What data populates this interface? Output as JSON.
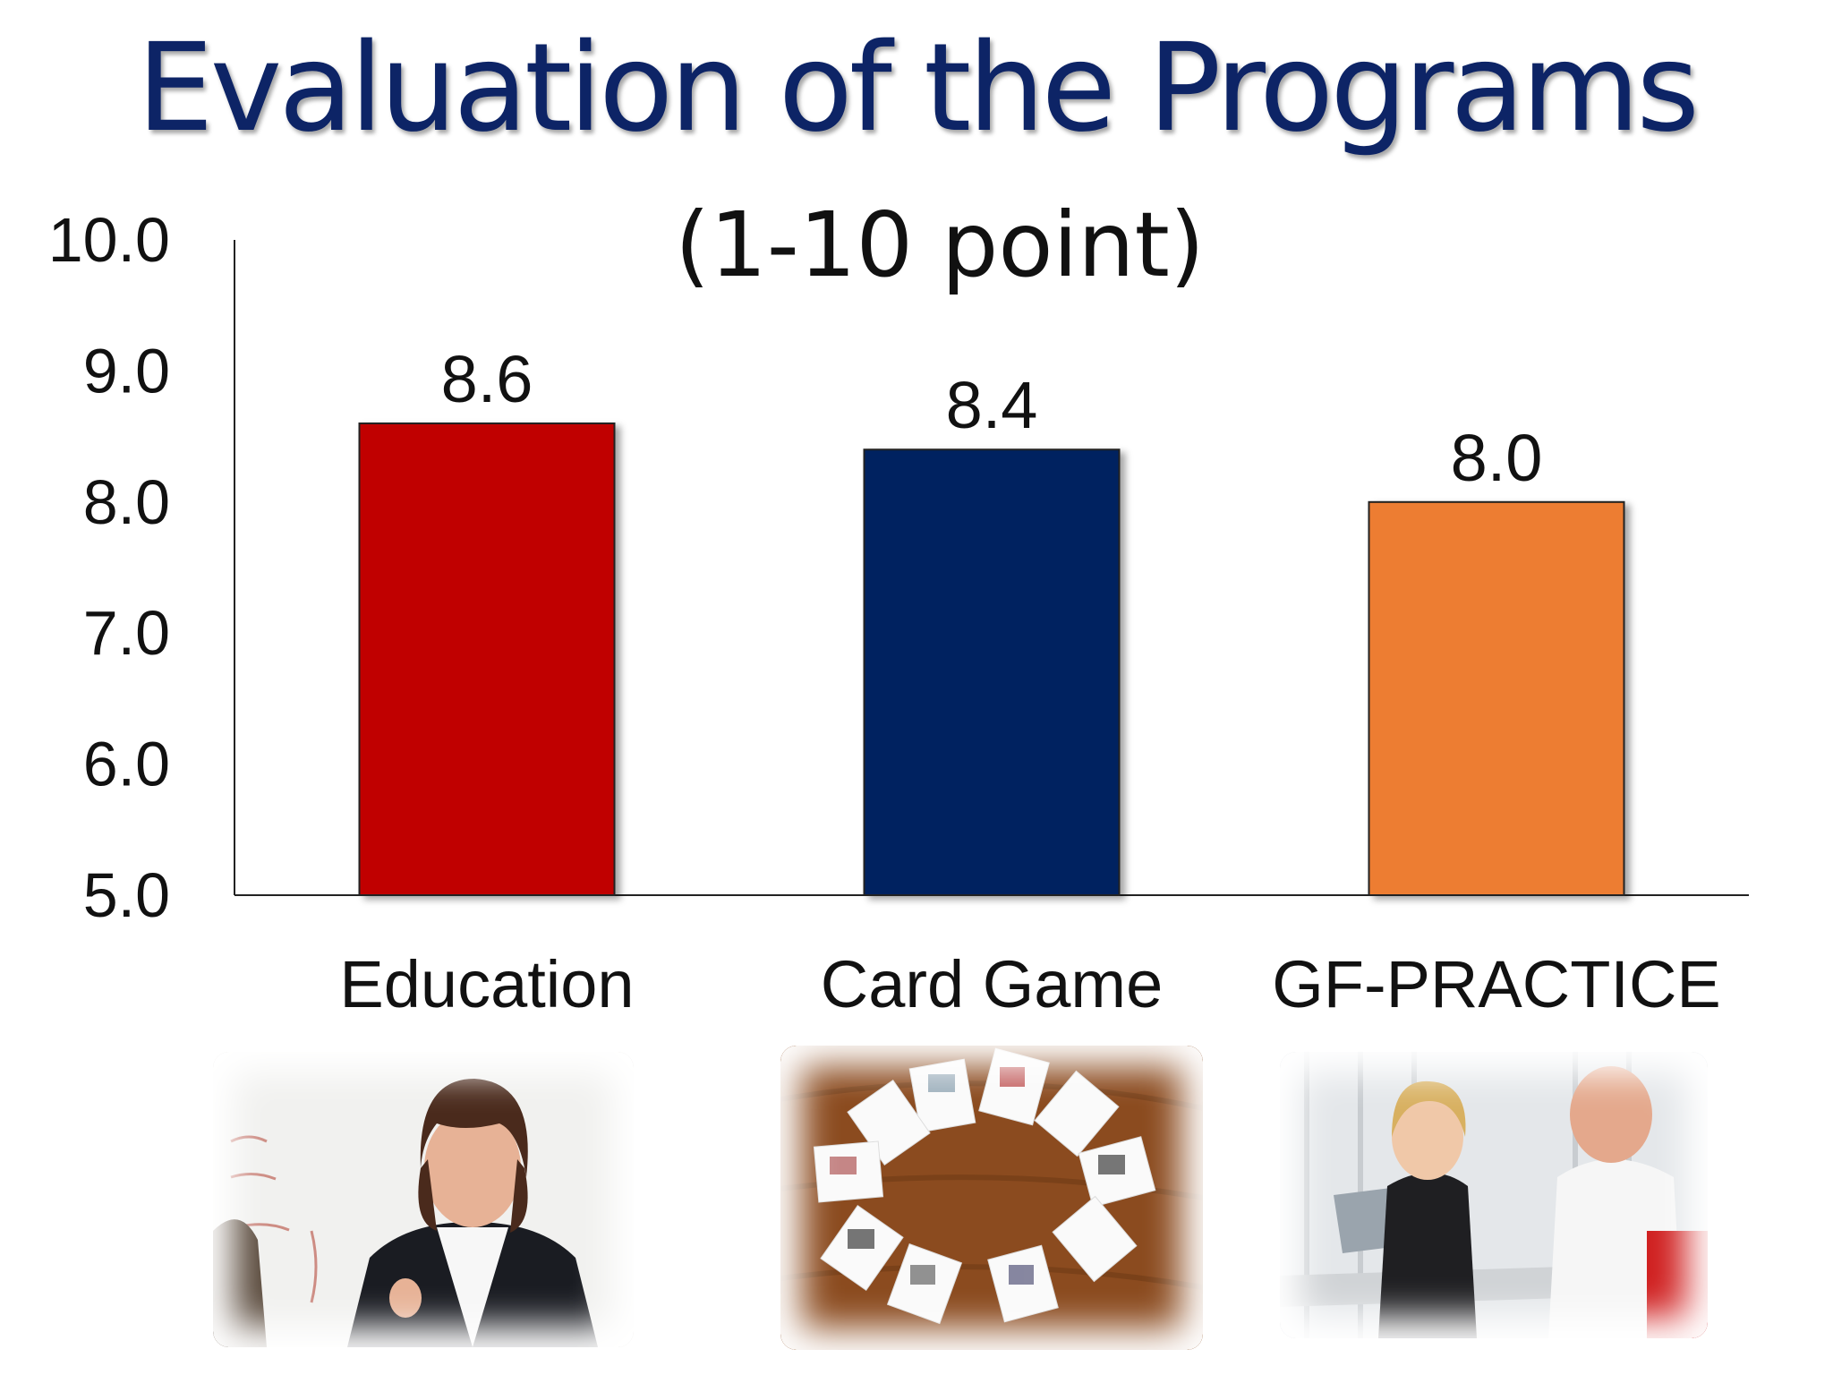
{
  "slide": {
    "title": "Evaluation of the Programs",
    "subtitle": "(1-10 point)"
  },
  "chart_data": {
    "type": "bar",
    "categories": [
      "Education",
      "Card Game",
      "GF-PRACTICE"
    ],
    "values": [
      8.6,
      8.4,
      8.0
    ],
    "data_labels": [
      "8.6",
      "8.4",
      "8.0"
    ],
    "colors": [
      "#c00000",
      "#002060",
      "#ed7d31"
    ],
    "ylim": [
      5.0,
      10.0
    ],
    "yticks": [
      "5.0",
      "6.0",
      "7.0",
      "8.0",
      "9.0",
      "10.0"
    ],
    "grid": false,
    "legend": "none"
  },
  "photos": [
    {
      "icon": "teacher-presenting-photo"
    },
    {
      "icon": "picture-cards-circle-photo"
    },
    {
      "icon": "two-people-meeting-photo"
    }
  ]
}
